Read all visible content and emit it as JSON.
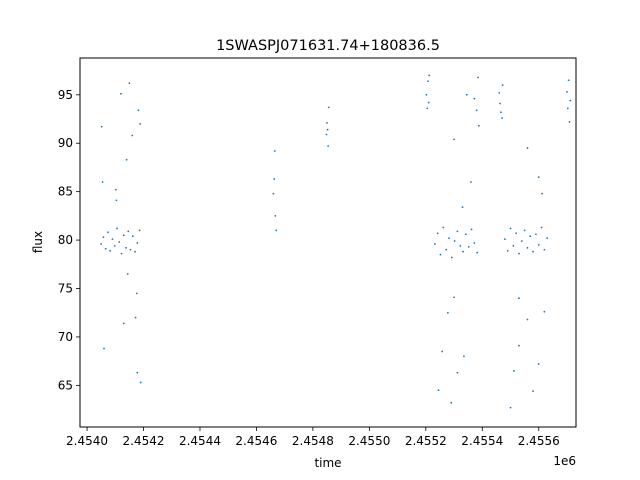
{
  "chart_data": {
    "type": "scatter",
    "title": "1SWASPJ071631.74+180836.5",
    "xlabel": "time",
    "ylabel": "flux",
    "x_offset_label": "1e6",
    "xlim": [
      2453975,
      2455732
    ],
    "ylim": [
      60.7,
      98.8
    ],
    "x_ticks": [
      {
        "value": 2454000,
        "label": "2.4540"
      },
      {
        "value": 2454200,
        "label": "2.4542"
      },
      {
        "value": 2454400,
        "label": "2.4544"
      },
      {
        "value": 2454600,
        "label": "2.4546"
      },
      {
        "value": 2454800,
        "label": "2.4548"
      },
      {
        "value": 2455000,
        "label": "2.4550"
      },
      {
        "value": 2455200,
        "label": "2.4552"
      },
      {
        "value": 2455400,
        "label": "2.4554"
      },
      {
        "value": 2455600,
        "label": "2.4556"
      }
    ],
    "y_ticks": [
      {
        "value": 65,
        "label": "65"
      },
      {
        "value": 70,
        "label": "70"
      },
      {
        "value": 75,
        "label": "75"
      },
      {
        "value": 80,
        "label": "80"
      },
      {
        "value": 85,
        "label": "85"
      },
      {
        "value": 90,
        "label": "90"
      },
      {
        "value": 95,
        "label": "95"
      }
    ],
    "grid": false,
    "marker_color": "#1f77b4",
    "series": [
      {
        "points": [
          [
            2454050,
            79.6
          ],
          [
            2454058,
            80.3
          ],
          [
            2454066,
            79.1
          ],
          [
            2454074,
            80.8
          ],
          [
            2454082,
            78.9
          ],
          [
            2454090,
            80.1
          ],
          [
            2454098,
            79.4
          ],
          [
            2454106,
            81.2
          ],
          [
            2454114,
            79.8
          ],
          [
            2454122,
            78.6
          ],
          [
            2454130,
            80.5
          ],
          [
            2454138,
            79.2
          ],
          [
            2454146,
            80.9
          ],
          [
            2454154,
            79.0
          ],
          [
            2454162,
            80.4
          ],
          [
            2454170,
            78.8
          ],
          [
            2454178,
            79.7
          ],
          [
            2454186,
            81.0
          ],
          [
            2454055,
            86.0
          ],
          [
            2454060,
            68.8
          ],
          [
            2454052,
            91.7
          ],
          [
            2454102,
            85.2
          ],
          [
            2454104,
            84.1
          ],
          [
            2454120,
            95.1
          ],
          [
            2454150,
            96.2
          ],
          [
            2454160,
            90.8
          ],
          [
            2454172,
            72.0
          ],
          [
            2454178,
            66.3
          ],
          [
            2454182,
            93.4
          ],
          [
            2454188,
            92.0
          ],
          [
            2454190,
            65.3
          ],
          [
            2454176,
            74.5
          ],
          [
            2454140,
            88.3
          ],
          [
            2454130,
            71.4
          ],
          [
            2454144,
            76.5
          ],
          [
            2454660,
            84.8
          ],
          [
            2454663,
            86.3
          ],
          [
            2454665,
            89.2
          ],
          [
            2454667,
            82.5
          ],
          [
            2454670,
            81.0
          ],
          [
            2454848,
            90.9
          ],
          [
            2454850,
            92.1
          ],
          [
            2454852,
            91.4
          ],
          [
            2454854,
            89.7
          ],
          [
            2454856,
            93.7
          ],
          [
            2455202,
            95.0
          ],
          [
            2455205,
            93.6
          ],
          [
            2455208,
            96.4
          ],
          [
            2455210,
            94.2
          ],
          [
            2455212,
            97.0
          ],
          [
            2455232,
            79.6
          ],
          [
            2455242,
            80.7
          ],
          [
            2455252,
            78.5
          ],
          [
            2455262,
            81.3
          ],
          [
            2455272,
            79.0
          ],
          [
            2455282,
            80.2
          ],
          [
            2455292,
            78.2
          ],
          [
            2455302,
            79.9
          ],
          [
            2455312,
            80.9
          ],
          [
            2455322,
            79.4
          ],
          [
            2455332,
            78.8
          ],
          [
            2455342,
            80.6
          ],
          [
            2455352,
            79.3
          ],
          [
            2455362,
            81.1
          ],
          [
            2455372,
            79.7
          ],
          [
            2455382,
            78.7
          ],
          [
            2455245,
            64.5
          ],
          [
            2455258,
            68.5
          ],
          [
            2455290,
            63.2
          ],
          [
            2455300,
            90.4
          ],
          [
            2455312,
            66.3
          ],
          [
            2455335,
            68.0
          ],
          [
            2455345,
            95.0
          ],
          [
            2455372,
            94.6
          ],
          [
            2455380,
            93.4
          ],
          [
            2455385,
            96.8
          ],
          [
            2455388,
            91.8
          ],
          [
            2455360,
            86.0
          ],
          [
            2455278,
            72.5
          ],
          [
            2455300,
            74.1
          ],
          [
            2455330,
            83.4
          ],
          [
            2455460,
            95.2
          ],
          [
            2455463,
            94.1
          ],
          [
            2455466,
            93.2
          ],
          [
            2455470,
            92.6
          ],
          [
            2455472,
            96.0
          ],
          [
            2455480,
            80.1
          ],
          [
            2455490,
            78.9
          ],
          [
            2455500,
            81.2
          ],
          [
            2455510,
            79.4
          ],
          [
            2455520,
            80.7
          ],
          [
            2455530,
            78.6
          ],
          [
            2455540,
            79.9
          ],
          [
            2455550,
            81.0
          ],
          [
            2455560,
            79.2
          ],
          [
            2455570,
            80.4
          ],
          [
            2455580,
            78.8
          ],
          [
            2455590,
            80.6
          ],
          [
            2455600,
            79.5
          ],
          [
            2455610,
            81.3
          ],
          [
            2455620,
            79.0
          ],
          [
            2455630,
            80.2
          ],
          [
            2455500,
            62.7
          ],
          [
            2455512,
            66.5
          ],
          [
            2455530,
            69.1
          ],
          [
            2455560,
            71.8
          ],
          [
            2455580,
            64.4
          ],
          [
            2455600,
            67.2
          ],
          [
            2455620,
            72.6
          ],
          [
            2455612,
            84.8
          ],
          [
            2455600,
            86.5
          ],
          [
            2455560,
            89.5
          ],
          [
            2455530,
            74.0
          ],
          [
            2455700,
            95.3
          ],
          [
            2455703,
            93.6
          ],
          [
            2455706,
            96.5
          ],
          [
            2455709,
            92.2
          ],
          [
            2455712,
            94.4
          ]
        ]
      }
    ]
  }
}
